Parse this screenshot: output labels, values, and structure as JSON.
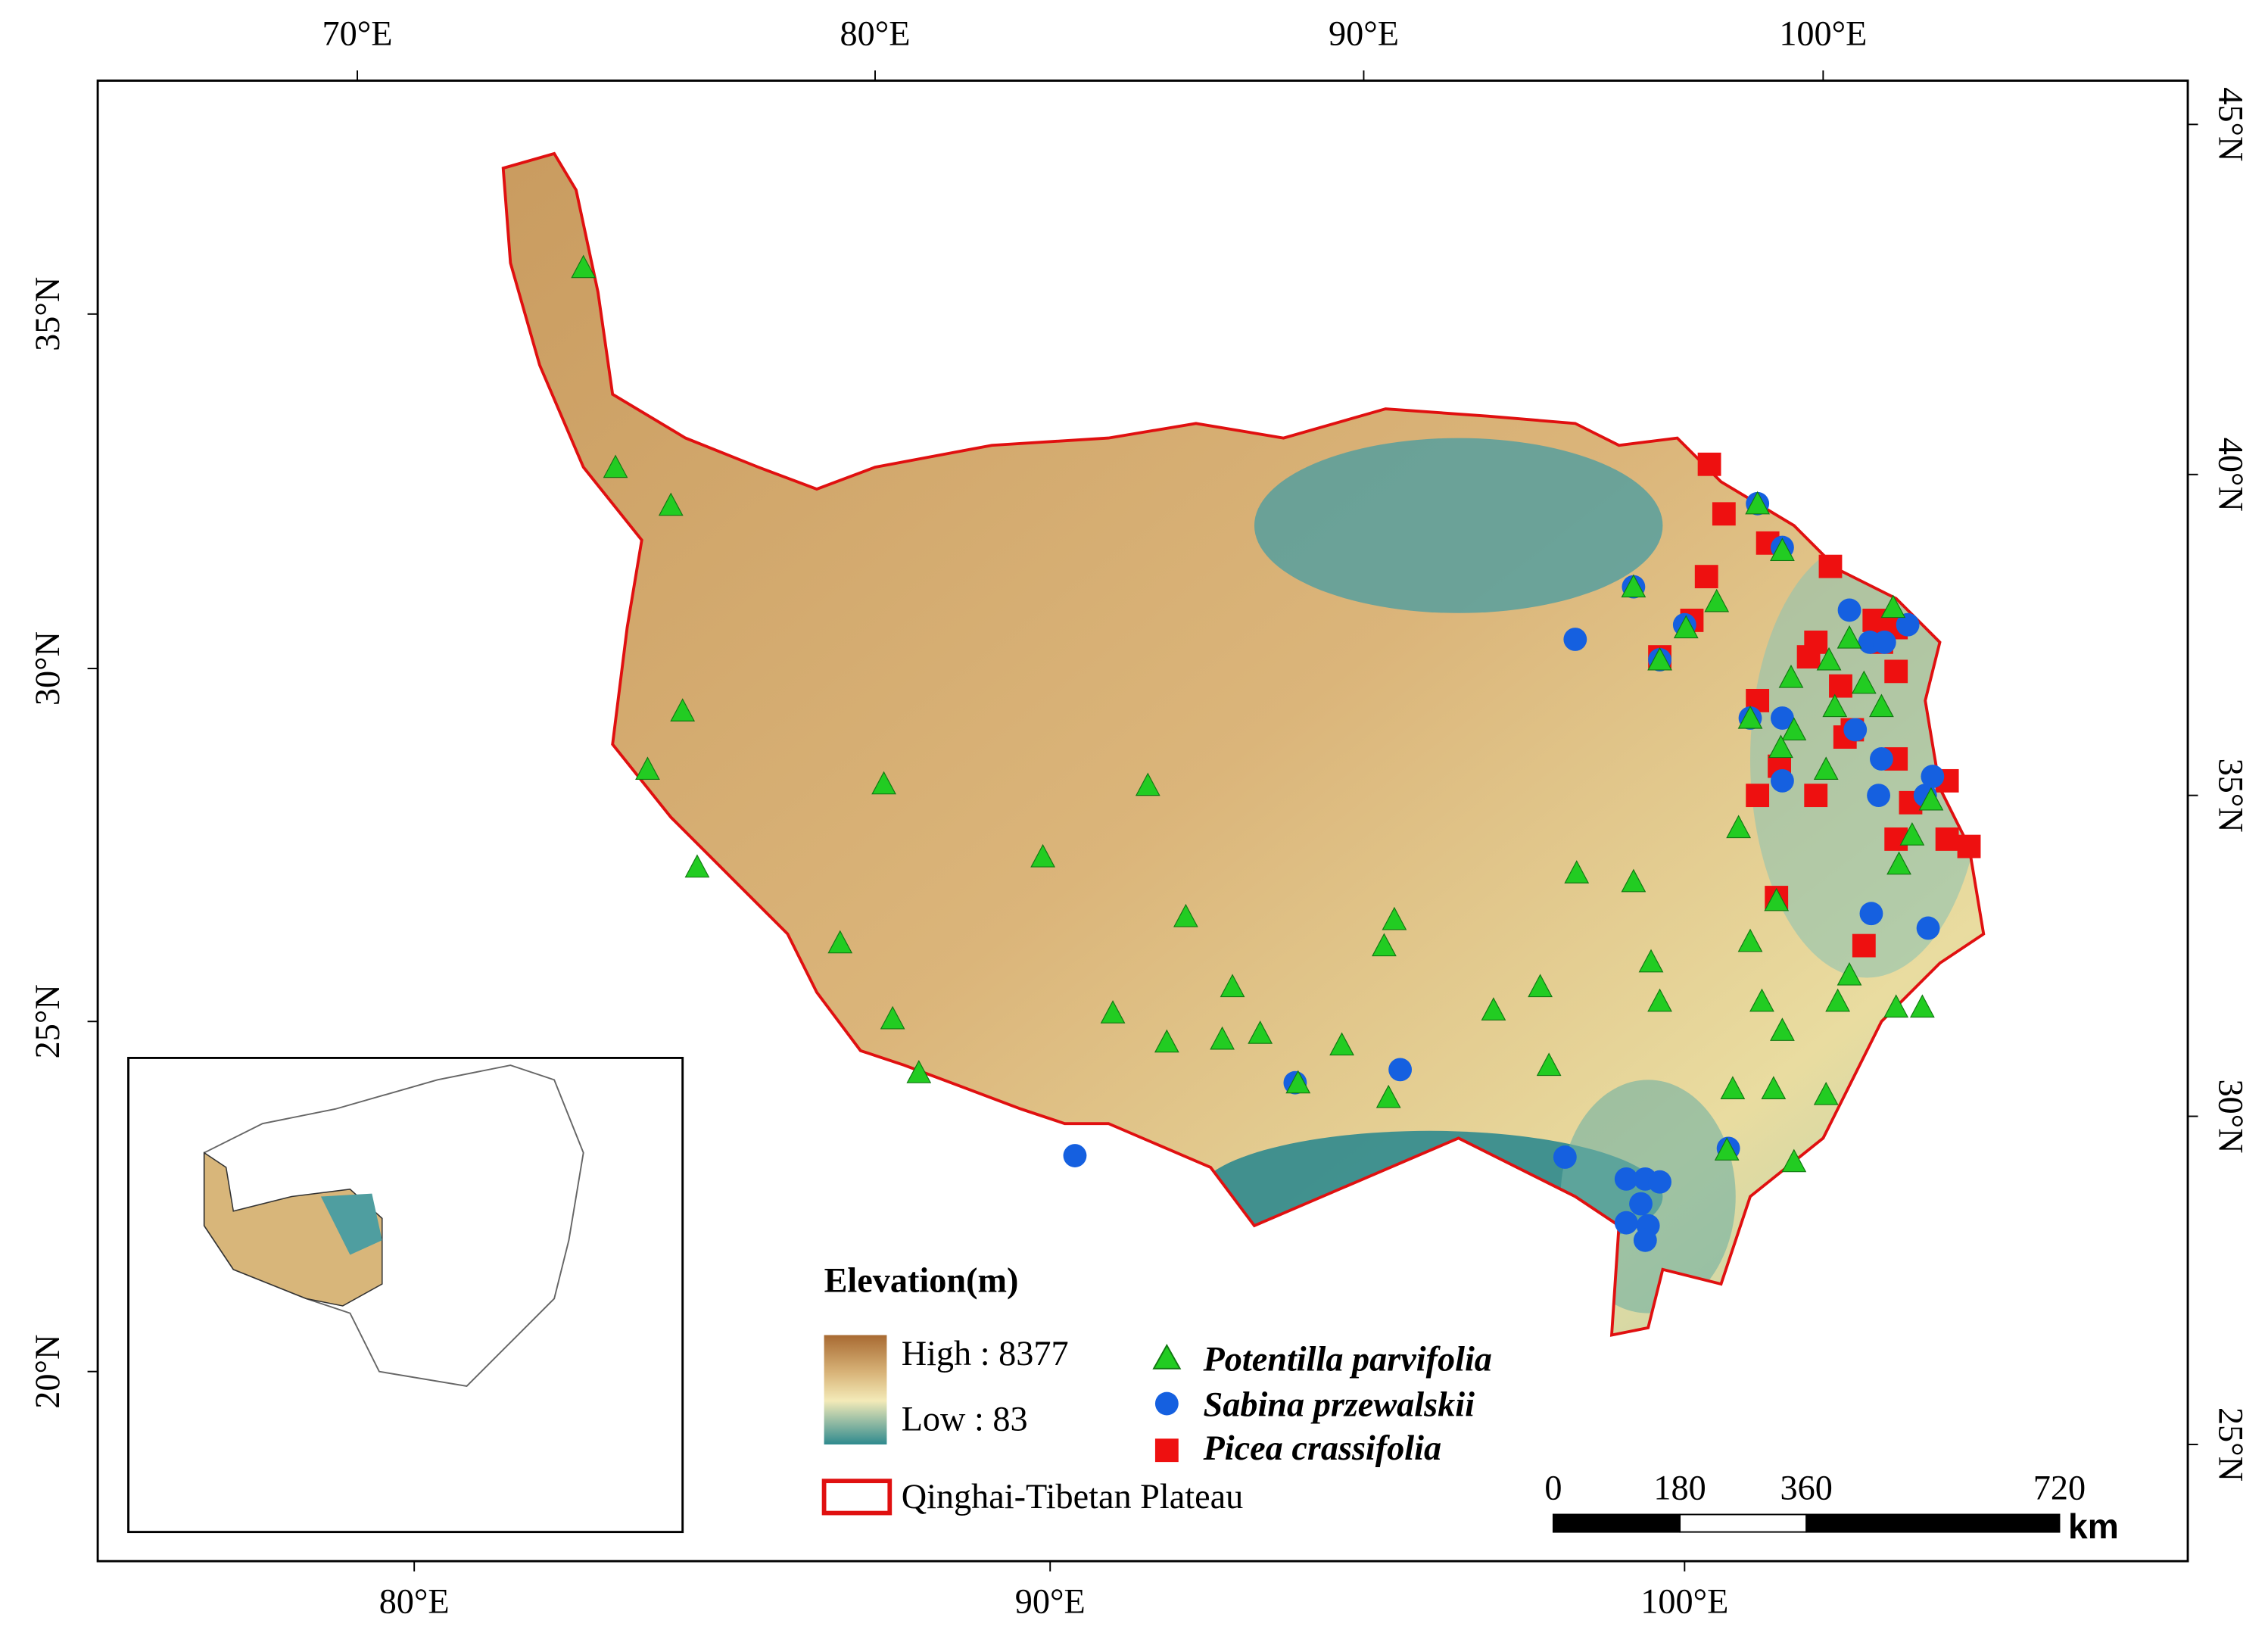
{
  "axes": {
    "top": [
      "70°E",
      "80°E",
      "90°E",
      "100°E"
    ],
    "bottom": [
      "80°E",
      "90°E",
      "100°E"
    ],
    "left": [
      "35°N",
      "30°N",
      "25°N",
      "20°N"
    ],
    "right": [
      "45°N",
      "40°N",
      "35°N",
      "30°N",
      "25°N"
    ]
  },
  "legend": {
    "title": "Elevation(m)",
    "high": "High : 8377",
    "low": "Low : 83",
    "species": [
      "Potentilla parvifolia",
      "Sabina przewalskii",
      "Picea crassifolia"
    ],
    "boundary": "Qinghai-Tibetan Plateau"
  },
  "scale_bar": {
    "ticks": [
      0,
      180,
      360,
      720
    ],
    "unit": "km"
  }
}
